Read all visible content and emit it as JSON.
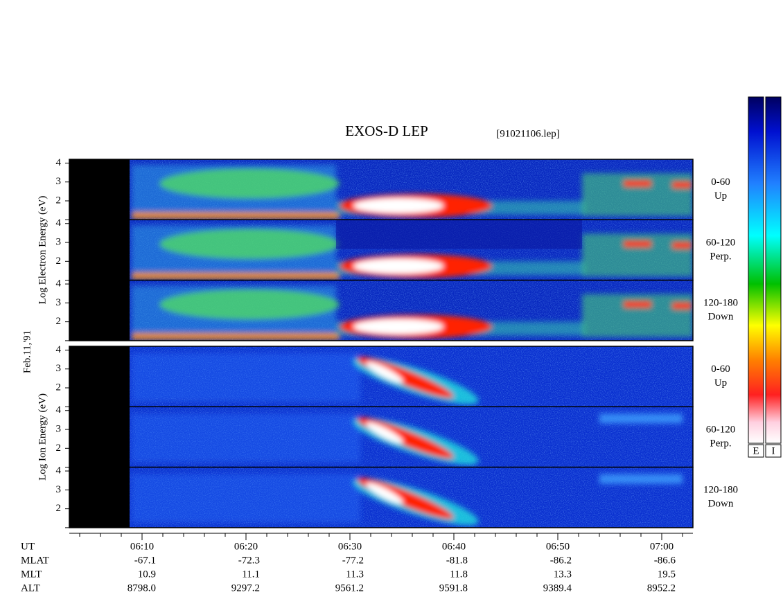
{
  "chart_data": {
    "type": "spectrogram",
    "title": "EXOS-D LEP",
    "file_label": "[91021106.lep]",
    "date_label": "Feb.11,'91",
    "ylim": [
      1,
      4.2
    ],
    "yticks": [
      2,
      3,
      4
    ],
    "xlim": [
      3,
      63
    ],
    "xticks": [
      {
        "value": 10,
        "label": "06:10"
      },
      {
        "value": 20,
        "label": "06:20"
      },
      {
        "value": 30,
        "label": "06:30"
      },
      {
        "value": 40,
        "label": "06:40"
      },
      {
        "value": 50,
        "label": "06:50"
      },
      {
        "value": 60,
        "label": "07:00"
      }
    ],
    "x_label": "UT",
    "groups": [
      {
        "ylabel": "Log Electron Energy (eV)",
        "panels": [
          {
            "label": "0-60",
            "sublabel": "Up"
          },
          {
            "label": "60-120",
            "sublabel": "Perp."
          },
          {
            "label": "120-180",
            "sublabel": "Down"
          }
        ]
      },
      {
        "ylabel": "Log Ion Energy (eV)",
        "panels": [
          {
            "label": "0-60",
            "sublabel": "Up"
          },
          {
            "label": "60-120",
            "sublabel": "Perp."
          },
          {
            "label": "120-180",
            "sublabel": "Down"
          }
        ]
      }
    ],
    "ephemeris": [
      {
        "label": "MLAT",
        "values": [
          "-67.1",
          "-72.3",
          "-77.2",
          "-81.8",
          "-86.2",
          "-86.6"
        ]
      },
      {
        "label": "MLT",
        "values": [
          "10.9",
          "11.1",
          "11.3",
          "11.8",
          "13.3",
          "19.5"
        ]
      },
      {
        "label": "ALT",
        "values": [
          "8798.0",
          "9297.2",
          "9561.2",
          "9591.8",
          "9389.4",
          "8952.2"
        ]
      }
    ],
    "colorbars": [
      "E",
      "I"
    ]
  }
}
